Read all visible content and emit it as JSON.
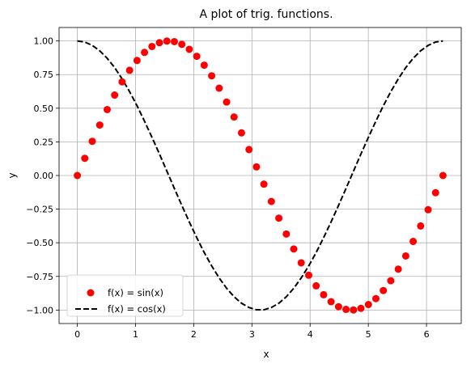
{
  "chart_data": {
    "type": "line",
    "title": "A plot of trig. functions.",
    "xlabel": "x",
    "ylabel": "y",
    "xlim": [
      -0.314,
      6.597
    ],
    "ylim": [
      -1.1,
      1.1
    ],
    "xticks": [
      0,
      1,
      2,
      3,
      4,
      5,
      6
    ],
    "xtick_labels": [
      "0",
      "1",
      "2",
      "3",
      "4",
      "5",
      "6"
    ],
    "yticks": [
      -1.0,
      -0.75,
      -0.5,
      -0.25,
      0.0,
      0.25,
      0.5,
      0.75,
      1.0
    ],
    "ytick_labels": [
      "−1.00",
      "−0.75",
      "−0.50",
      "−0.25",
      "0.00",
      "0.25",
      "0.50",
      "0.75",
      "1.00"
    ],
    "grid": true,
    "legend_position": "lower-left",
    "series": [
      {
        "name": "f(x) = sin(x)",
        "style": "markers",
        "color": "#ff0000",
        "x": [
          0,
          0.128,
          0.256,
          0.385,
          0.513,
          0.641,
          0.769,
          0.898,
          1.026,
          1.154,
          1.282,
          1.411,
          1.539,
          1.667,
          1.795,
          1.924,
          2.052,
          2.18,
          2.308,
          2.437,
          2.565,
          2.693,
          2.821,
          2.95,
          3.078,
          3.206,
          3.334,
          3.463,
          3.591,
          3.719,
          3.847,
          3.976,
          4.104,
          4.232,
          4.36,
          4.489,
          4.617,
          4.745,
          4.873,
          5.002,
          5.13,
          5.258,
          5.386,
          5.515,
          5.643,
          5.771,
          5.899,
          6.028,
          6.156,
          6.283
        ],
        "y": [
          0.0,
          0.128,
          0.254,
          0.375,
          0.49,
          0.598,
          0.696,
          0.782,
          0.855,
          0.915,
          0.959,
          0.987,
          0.999,
          0.995,
          0.975,
          0.938,
          0.886,
          0.82,
          0.741,
          0.649,
          0.546,
          0.435,
          0.317,
          0.193,
          0.064,
          -0.064,
          -0.193,
          -0.317,
          -0.435,
          -0.546,
          -0.649,
          -0.741,
          -0.82,
          -0.886,
          -0.938,
          -0.975,
          -0.995,
          -0.999,
          -0.987,
          -0.959,
          -0.915,
          -0.855,
          -0.782,
          -0.696,
          -0.598,
          -0.49,
          -0.375,
          -0.254,
          -0.128,
          0.0
        ]
      },
      {
        "name": "f(x) = cos(x)",
        "style": "dashed",
        "color": "#000000",
        "x": [
          0,
          0.128,
          0.256,
          0.385,
          0.513,
          0.641,
          0.769,
          0.898,
          1.026,
          1.154,
          1.282,
          1.411,
          1.539,
          1.667,
          1.795,
          1.924,
          2.052,
          2.18,
          2.308,
          2.437,
          2.565,
          2.693,
          2.821,
          2.95,
          3.078,
          3.206,
          3.334,
          3.463,
          3.591,
          3.719,
          3.847,
          3.976,
          4.104,
          4.232,
          4.36,
          4.489,
          4.617,
          4.745,
          4.873,
          5.002,
          5.13,
          5.258,
          5.386,
          5.515,
          5.643,
          5.771,
          5.899,
          6.028,
          6.156,
          6.283
        ],
        "y": [
          1.0,
          0.992,
          0.967,
          0.927,
          0.871,
          0.802,
          0.718,
          0.623,
          0.518,
          0.404,
          0.284,
          0.16,
          0.032,
          -0.096,
          -0.222,
          -0.345,
          -0.462,
          -0.572,
          -0.672,
          -0.761,
          -0.838,
          -0.901,
          -0.949,
          -0.981,
          -0.998,
          -0.998,
          -0.981,
          -0.949,
          -0.901,
          -0.838,
          -0.761,
          -0.672,
          -0.572,
          -0.462,
          -0.345,
          -0.222,
          -0.096,
          0.032,
          0.16,
          0.284,
          0.404,
          0.518,
          0.623,
          0.718,
          0.802,
          0.871,
          0.927,
          0.967,
          0.992,
          1.0
        ]
      }
    ]
  }
}
